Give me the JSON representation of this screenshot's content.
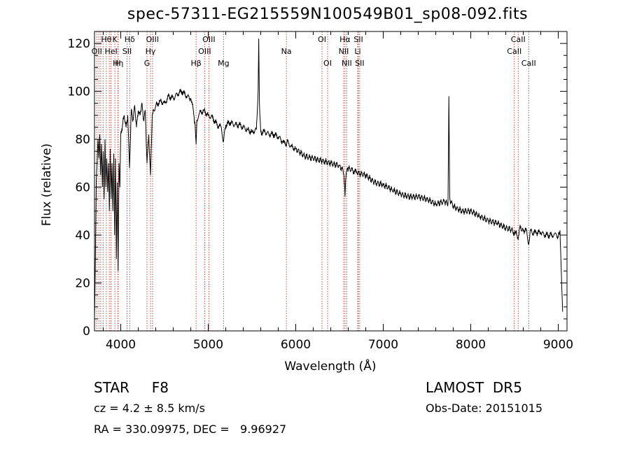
{
  "chart_data": {
    "type": "line",
    "title": "spec-57311-EG215559N100549B01_sp08-092.fits",
    "xlabel": "Wavelength (Å)",
    "ylabel": "Flux (relative)",
    "xlim": [
      3700,
      9100
    ],
    "ylim": [
      0,
      125
    ],
    "xticks": [
      4000,
      5000,
      6000,
      7000,
      8000,
      9000
    ],
    "yticks": [
      0,
      20,
      40,
      60,
      80,
      100,
      120
    ],
    "grid": false,
    "series": [
      {
        "color": "#000000",
        "x": [
          3700,
          3710,
          3720,
          3730,
          3740,
          3750,
          3760,
          3770,
          3780,
          3790,
          3800,
          3810,
          3820,
          3830,
          3840,
          3850,
          3860,
          3870,
          3880,
          3890,
          3900,
          3910,
          3920,
          3930,
          3940,
          3950,
          3960,
          3970,
          3980,
          3990,
          4000,
          4020,
          4040,
          4060,
          4080,
          4100,
          4120,
          4140,
          4160,
          4180,
          4200,
          4220,
          4240,
          4260,
          4280,
          4300,
          4320,
          4340,
          4360,
          4380,
          4400,
          4450,
          4500,
          4550,
          4600,
          4650,
          4700,
          4750,
          4800,
          4830,
          4850,
          4861,
          4870,
          4900,
          4950,
          5000,
          5050,
          5100,
          5150,
          5172,
          5200,
          5250,
          5300,
          5350,
          5400,
          5450,
          5500,
          5550,
          5570,
          5577,
          5585,
          5600,
          5650,
          5700,
          5750,
          5800,
          5850,
          5893,
          5900,
          5950,
          6000,
          6100,
          6200,
          6300,
          6400,
          6500,
          6540,
          6555,
          6563,
          6570,
          6590,
          6650,
          6700,
          6800,
          6900,
          7000,
          7100,
          7200,
          7300,
          7400,
          7500,
          7600,
          7700,
          7740,
          7750,
          7760,
          7800,
          7900,
          8000,
          8100,
          8200,
          8300,
          8400,
          8480,
          8500,
          8520,
          8542,
          8560,
          8600,
          8640,
          8662,
          8680,
          8700,
          8750,
          8800,
          8850,
          8900,
          8950,
          8980,
          9000,
          9020,
          9040,
          9050
        ],
        "y": [
          5,
          30,
          62,
          70,
          80,
          72,
          82,
          65,
          78,
          60,
          75,
          55,
          80,
          60,
          72,
          58,
          70,
          50,
          76,
          55,
          70,
          50,
          74,
          40,
          72,
          30,
          62,
          25,
          70,
          60,
          82,
          86,
          90,
          85,
          90,
          68,
          92,
          88,
          94,
          85,
          92,
          90,
          95,
          88,
          92,
          70,
          82,
          65,
          90,
          92,
          94,
          96,
          95,
          98,
          97,
          99,
          100,
          98,
          97,
          92,
          86,
          78,
          88,
          91,
          92,
          90,
          89,
          86,
          85,
          79,
          86,
          87,
          86,
          86,
          85,
          84,
          83,
          84,
          100,
          122,
          95,
          83,
          83,
          82,
          82,
          81,
          79,
          77,
          79,
          77,
          76,
          73,
          72,
          71,
          70,
          69,
          67,
          62,
          56,
          63,
          68,
          67,
          66,
          65,
          62,
          61,
          59,
          57,
          56,
          56,
          55,
          53,
          54,
          53,
          98,
          55,
          52,
          50,
          50,
          48,
          46,
          45,
          43,
          42,
          40,
          42,
          38,
          43,
          42,
          42,
          36,
          42,
          41,
          41,
          41,
          40,
          40,
          40,
          40,
          39,
          42,
          18,
          8
        ]
      }
    ],
    "lines": [
      {
        "wl": 3726,
        "top": "OII",
        "row": 1
      },
      {
        "wl": 3750,
        "top": "",
        "row": 0
      },
      {
        "wl": 3771,
        "top": "",
        "row": 0
      },
      {
        "wl": 3798,
        "top": "",
        "row": 0
      },
      {
        "wl": 3835,
        "top": "Hθ",
        "row": 0
      },
      {
        "wl": 3869,
        "top": "",
        "row": 0
      },
      {
        "wl": 3889,
        "top": "HeI",
        "row": 1
      },
      {
        "wl": 3933,
        "top": "K",
        "row": 0
      },
      {
        "wl": 3968,
        "top": "H",
        "row": 2
      },
      {
        "wl": 3970,
        "top": "Hη",
        "row": 2
      },
      {
        "wl": 4072,
        "top": "SII",
        "row": 1
      },
      {
        "wl": 4102,
        "top": "Hδ",
        "row": 0
      },
      {
        "wl": 4300,
        "top": "G",
        "row": 2
      },
      {
        "wl": 4340,
        "top": "Hγ",
        "row": 1
      },
      {
        "wl": 4363,
        "top": "OIII",
        "row": 0
      },
      {
        "wl": 4861,
        "top": "Hβ",
        "row": 2
      },
      {
        "wl": 4959,
        "top": "OIII",
        "row": 1
      },
      {
        "wl": 5007,
        "top": "OIII",
        "row": 0
      },
      {
        "wl": 5175,
        "top": "Mg",
        "row": 2
      },
      {
        "wl": 5893,
        "top": "Na",
        "row": 1
      },
      {
        "wl": 6300,
        "top": "OI",
        "row": 0
      },
      {
        "wl": 6364,
        "top": "OI",
        "row": 2
      },
      {
        "wl": 6548,
        "top": "NII",
        "row": 1
      },
      {
        "wl": 6563,
        "top": "Hα",
        "row": 0
      },
      {
        "wl": 6583,
        "top": "NII",
        "row": 2
      },
      {
        "wl": 6708,
        "top": "Li",
        "row": 1
      },
      {
        "wl": 6716,
        "top": "SII",
        "row": 0
      },
      {
        "wl": 6731,
        "top": "SII",
        "row": 2
      },
      {
        "wl": 8498,
        "top": "CaII",
        "row": 1
      },
      {
        "wl": 8542,
        "top": "CaII",
        "row": 0
      },
      {
        "wl": 8662,
        "top": "CaII",
        "row": 2
      }
    ],
    "line_color": "#c0392b"
  },
  "info": {
    "class_label": "STAR     F8",
    "survey": "LAMOST  DR5",
    "cz": "cz = 4.2 ± 8.5 km/s",
    "obs_date": "Obs-Date: 20151015",
    "radec": "RA = 330.09975, DEC =   9.96927"
  }
}
